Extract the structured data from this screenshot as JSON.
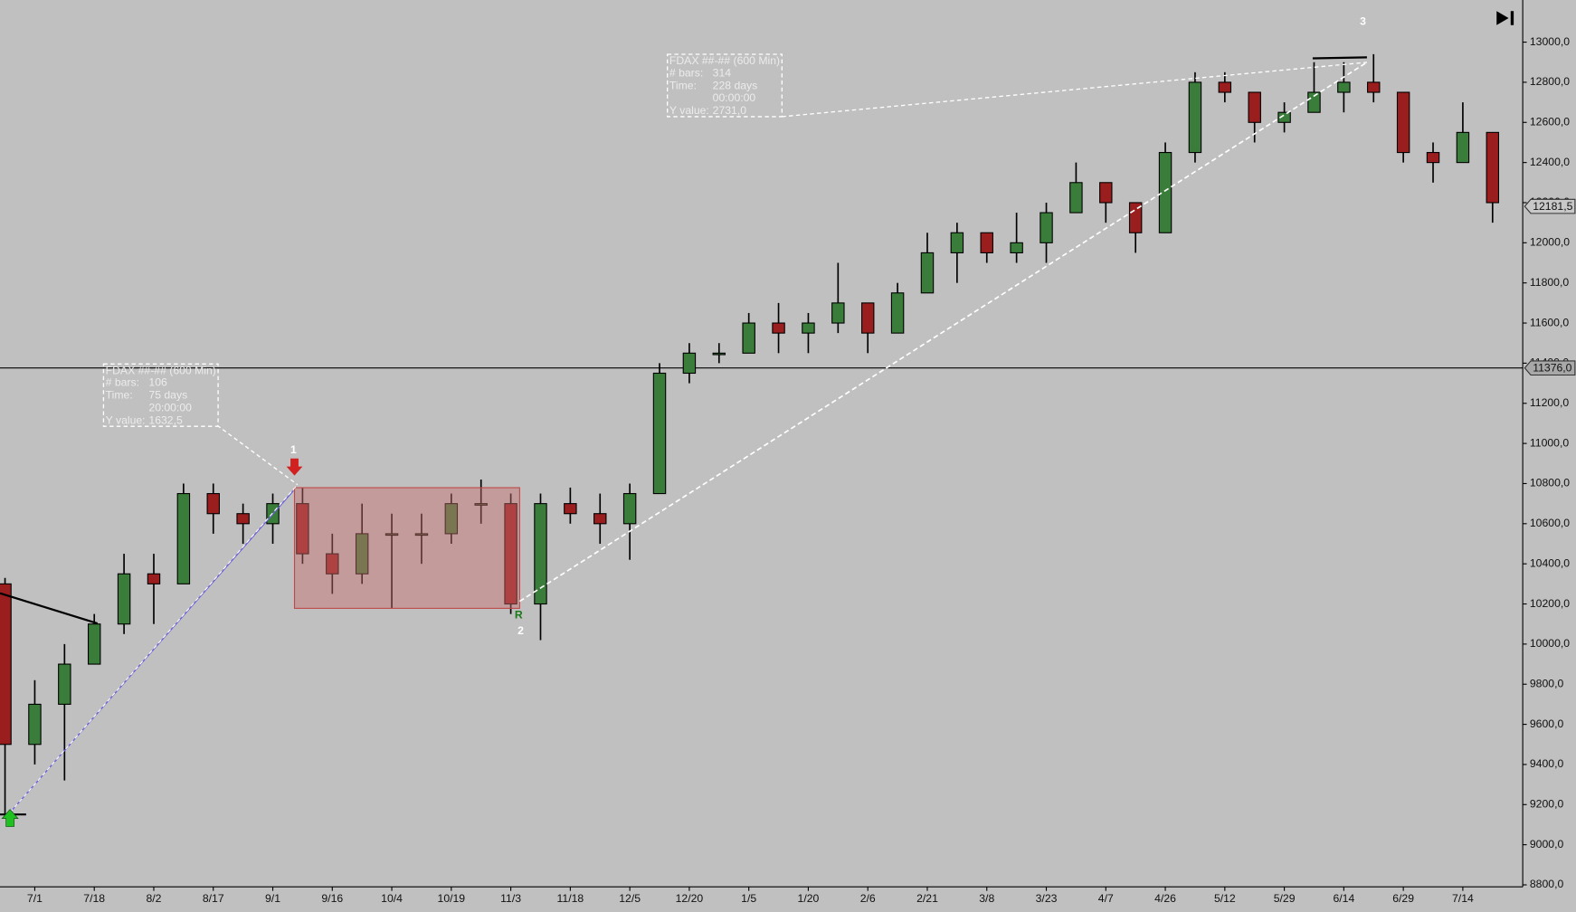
{
  "chart_data": {
    "type": "ohlc",
    "categories": [
      null,
      "7/1",
      null,
      "7/18",
      null,
      "8/2",
      null,
      "8/17",
      null,
      "9/1",
      null,
      "9/16",
      null,
      "10/4",
      null,
      "10/19",
      null,
      "11/3",
      null,
      "11/18",
      null,
      "12/5",
      null,
      "12/20",
      null,
      "1/5",
      null,
      "1/20",
      null,
      "2/6",
      null,
      "2/21",
      null,
      "3/8",
      null,
      "3/23",
      null,
      "4/7",
      null,
      "4/26",
      null,
      "5/12",
      null,
      "5/29",
      null,
      "6/14",
      null,
      "6/29",
      null,
      "7/14",
      null
    ],
    "open": [
      10300,
      9500,
      9700,
      9900,
      10100,
      10350,
      10300,
      10750,
      10650,
      10600,
      10700,
      10450,
      10350,
      10550,
      10550,
      10550,
      10700,
      10700,
      10200,
      10700,
      10650,
      10600,
      10750,
      11350,
      11450,
      11450,
      11600,
      11550,
      11600,
      11700,
      11550,
      11750,
      11950,
      12050,
      11950,
      12000,
      12150,
      12300,
      12200,
      12050,
      12450,
      12800,
      12750,
      12600,
      12650,
      12750,
      12800,
      12750,
      12450,
      12400,
      12550
    ],
    "high": [
      10330,
      9820,
      10000,
      10150,
      10450,
      10450,
      10800,
      10800,
      10700,
      10750,
      10780,
      10550,
      10700,
      10650,
      10650,
      10750,
      10820,
      10750,
      10750,
      10780,
      10750,
      10800,
      11400,
      11500,
      11500,
      11650,
      11700,
      11650,
      11900,
      11700,
      11800,
      12050,
      12100,
      12050,
      12150,
      12200,
      12400,
      12300,
      12200,
      12500,
      12850,
      12850,
      12750,
      12700,
      12900,
      12900,
      12940,
      12750,
      12500,
      12700,
      12550
    ],
    "low": [
      9150,
      9400,
      9320,
      9900,
      10050,
      10100,
      10300,
      10550,
      10500,
      10500,
      10400,
      10250,
      10300,
      10180,
      10400,
      10500,
      10600,
      10150,
      10020,
      10600,
      10500,
      10420,
      10750,
      11300,
      11400,
      11450,
      11450,
      11450,
      11550,
      11450,
      11550,
      11750,
      11800,
      11900,
      11900,
      11900,
      12150,
      12100,
      11950,
      12050,
      12400,
      12700,
      12500,
      12550,
      12650,
      12650,
      12700,
      12400,
      12300,
      12400,
      12100
    ],
    "close": [
      9500,
      9700,
      9900,
      10100,
      10350,
      10300,
      10750,
      10650,
      10600,
      10700,
      10450,
      10350,
      10550,
      10550,
      10550,
      10700,
      10700,
      10200,
      10700,
      10650,
      10600,
      10750,
      11350,
      11450,
      11450,
      11600,
      11550,
      11600,
      11700,
      11550,
      11750,
      11950,
      12050,
      11950,
      12000,
      12150,
      12300,
      12200,
      12050,
      12450,
      12800,
      12750,
      12600,
      12650,
      12750,
      12800,
      12750,
      12450,
      12400,
      12550,
      12200
    ],
    "up_color": "#3a7d3a",
    "down_color": "#9a1e1e",
    "ylim": [
      8790,
      13210
    ],
    "yticks": [
      {
        "value": 8800,
        "label": "8800,0"
      },
      {
        "value": 9000,
        "label": "9000,0"
      },
      {
        "value": 9200,
        "label": "9200,0"
      },
      {
        "value": 9400,
        "label": "9400,0"
      },
      {
        "value": 9600,
        "label": "9600,0"
      },
      {
        "value": 9800,
        "label": "9800,0"
      },
      {
        "value": 10000,
        "label": "10000,0"
      },
      {
        "value": 10200,
        "label": "10200,0"
      },
      {
        "value": 10400,
        "label": "10400,0"
      },
      {
        "value": 10600,
        "label": "10600,0"
      },
      {
        "value": 10800,
        "label": "10800,0"
      },
      {
        "value": 11000,
        "label": "11000,0"
      },
      {
        "value": 11200,
        "label": "11200,0"
      },
      {
        "value": 11400,
        "label": "11400,0"
      },
      {
        "value": 11600,
        "label": "11600,0"
      },
      {
        "value": 11800,
        "label": "11800,0"
      },
      {
        "value": 12000,
        "label": "12000,0"
      },
      {
        "value": 12200,
        "label": "12200,0"
      },
      {
        "value": 12400,
        "label": "12400,0"
      },
      {
        "value": 12600,
        "label": "12600,0"
      },
      {
        "value": 12800,
        "label": "12800,0"
      },
      {
        "value": 13000,
        "label": "13000,0"
      }
    ],
    "price_markers": [
      {
        "value": 11376,
        "label": "11376,0",
        "line": true
      },
      {
        "value": 12181.5,
        "label": "12181,5",
        "line": false
      }
    ],
    "annotations": [
      "1",
      "2",
      "3",
      "R"
    ],
    "measure_boxes": [
      {
        "title": "FDAX ##-## (600 Min)",
        "rows": [
          {
            "label": "# bars:",
            "value": "106"
          },
          {
            "label": "Time:",
            "value": "75 days"
          },
          {
            "value": "20:00:00"
          },
          {
            "label": "Y value:",
            "value": "1632,5"
          }
        ]
      },
      {
        "title": "FDAX ##-## (600 Min)",
        "rows": [
          {
            "label": "# bars:",
            "value": "314"
          },
          {
            "label": "Time:",
            "value": "228 days"
          },
          {
            "value": "00:00:00"
          },
          {
            "label": "Y value:",
            "value": "2731,0"
          }
        ]
      }
    ]
  }
}
